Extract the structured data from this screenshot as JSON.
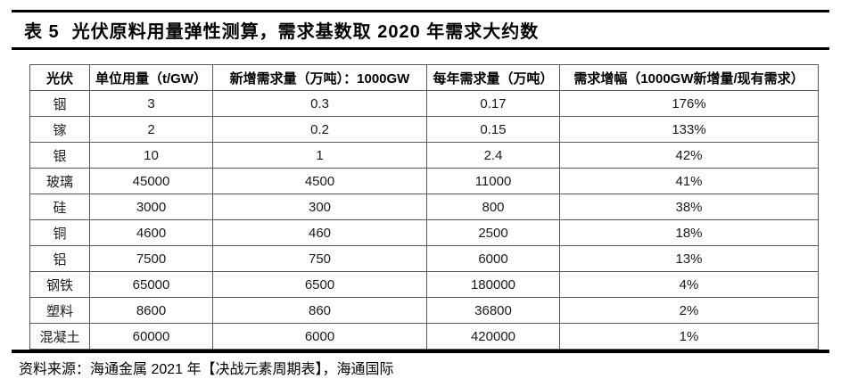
{
  "title": {
    "label": "表 5",
    "text": "光伏原料用量弹性测算，需求基数取 2020 年需求大约数"
  },
  "table": {
    "headers": [
      "光伏",
      "单位用量（t/GW）",
      "新增需求量（万吨）：1000GW",
      "每年需求量（万吨）",
      "需求增幅（1000GW新增量/现有需求）"
    ],
    "rows": [
      [
        "铟",
        "3",
        "0.3",
        "0.17",
        "176%"
      ],
      [
        "镓",
        "2",
        "0.2",
        "0.15",
        "133%"
      ],
      [
        "银",
        "10",
        "1",
        "2.4",
        "42%"
      ],
      [
        "玻璃",
        "45000",
        "4500",
        "11000",
        "41%"
      ],
      [
        "硅",
        "3000",
        "300",
        "800",
        "38%"
      ],
      [
        "铜",
        "4600",
        "460",
        "2500",
        "18%"
      ],
      [
        "铝",
        "7500",
        "750",
        "6000",
        "13%"
      ],
      [
        "钢铁",
        "65000",
        "6500",
        "180000",
        "4%"
      ],
      [
        "塑料",
        "8600",
        "860",
        "36800",
        "2%"
      ],
      [
        "混凝土",
        "60000",
        "6000",
        "420000",
        "1%"
      ]
    ]
  },
  "footer": {
    "source": "资料来源：海通金属 2021 年【决战元素周期表】，海通国际"
  },
  "colors": {
    "text": "#000000",
    "rule": "#000000",
    "table_border": "#595959",
    "background": "#ffffff"
  }
}
